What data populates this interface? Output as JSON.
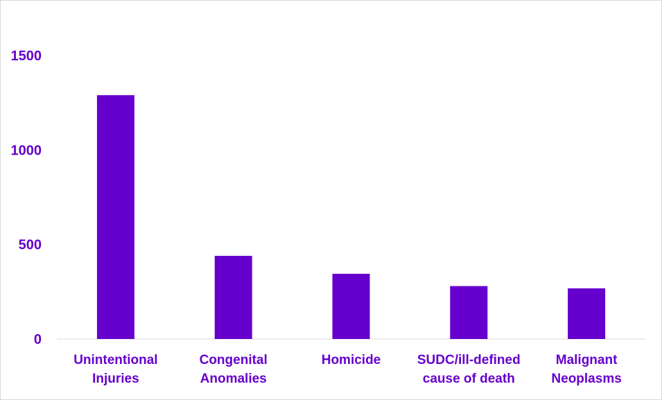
{
  "chart_data": {
    "type": "bar",
    "title": "",
    "xlabel": "",
    "ylabel": "",
    "categories": [
      [
        "Unintentional",
        "Injuries"
      ],
      [
        "Congenital",
        "Anomalies"
      ],
      [
        "Homicide"
      ],
      [
        "SUDC/ill-defined",
        "cause of death"
      ],
      [
        "Malignant",
        "Neoplasms"
      ]
    ],
    "values": [
      1290,
      440,
      345,
      280,
      268
    ],
    "ylim": [
      0,
      1500
    ],
    "yticks": [
      "0",
      "500",
      "1000",
      "1500"
    ],
    "grid": false,
    "legend": "none",
    "bar_color": "#6600cc",
    "text_color": "#6600cc",
    "axis_color": "#d9d9d9"
  }
}
